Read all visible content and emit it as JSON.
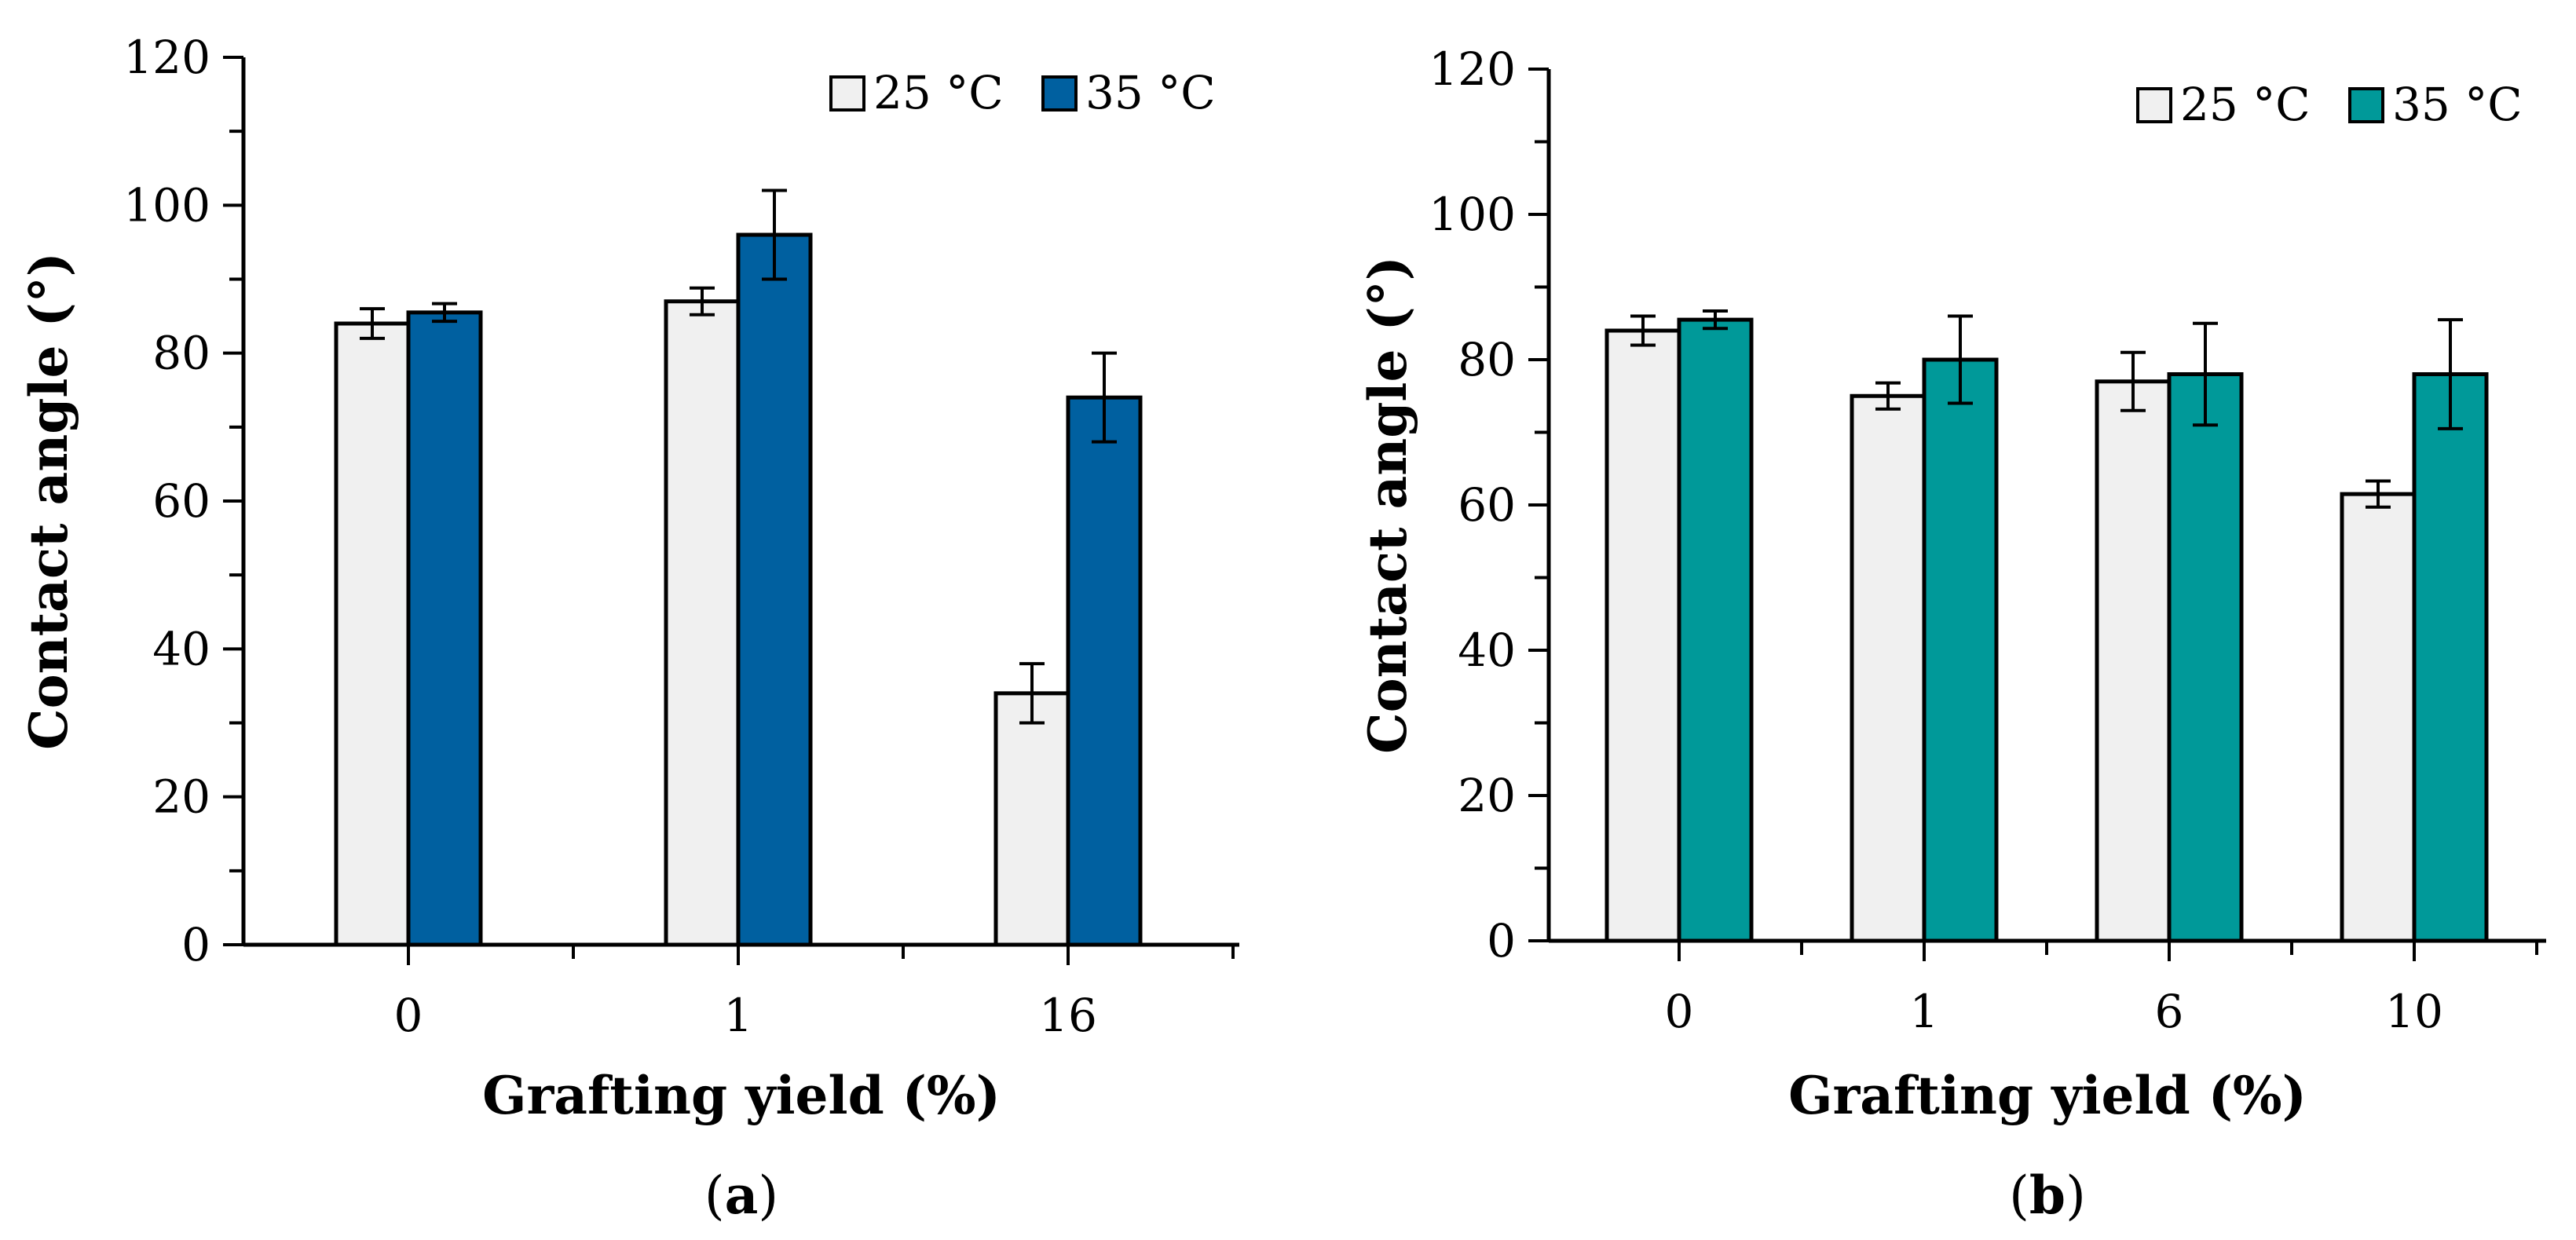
{
  "chart_data": [
    {
      "id": "a",
      "type": "bar",
      "panel_label": "(a)",
      "panel_letter": "a",
      "title": "",
      "xlabel": "Grafting yield (%)",
      "ylabel": "Contact angle (°)",
      "ylim": [
        0,
        120
      ],
      "yticks": [
        0,
        20,
        40,
        60,
        80,
        100,
        120
      ],
      "categories": [
        "0",
        "1",
        "16"
      ],
      "legend_position": "top-right",
      "series": [
        {
          "name": "25 °C",
          "color": "#f0f0f0",
          "values": [
            84,
            87,
            34
          ],
          "errors": [
            2,
            1.8,
            4
          ]
        },
        {
          "name": "35 °C",
          "color": "#0060a0",
          "values": [
            85.5,
            96,
            74
          ],
          "errors": [
            1.2,
            6,
            6
          ]
        }
      ]
    },
    {
      "id": "b",
      "type": "bar",
      "panel_label": "(b)",
      "panel_letter": "b",
      "title": "",
      "xlabel": "Grafting yield (%)",
      "ylabel": "Contact angle (°)",
      "ylim": [
        0,
        120
      ],
      "yticks": [
        0,
        20,
        40,
        60,
        80,
        100,
        120
      ],
      "categories": [
        "0",
        "1",
        "6",
        "10"
      ],
      "legend_position": "top-right",
      "series": [
        {
          "name": "25 °C",
          "color": "#f0f0f0",
          "values": [
            84,
            75,
            77,
            61.5
          ],
          "errors": [
            2,
            1.8,
            4,
            1.8
          ]
        },
        {
          "name": "35 °C",
          "color": "#009999",
          "values": [
            85.5,
            80,
            78,
            78
          ],
          "errors": [
            1.2,
            6,
            7,
            7.5
          ]
        }
      ]
    }
  ]
}
